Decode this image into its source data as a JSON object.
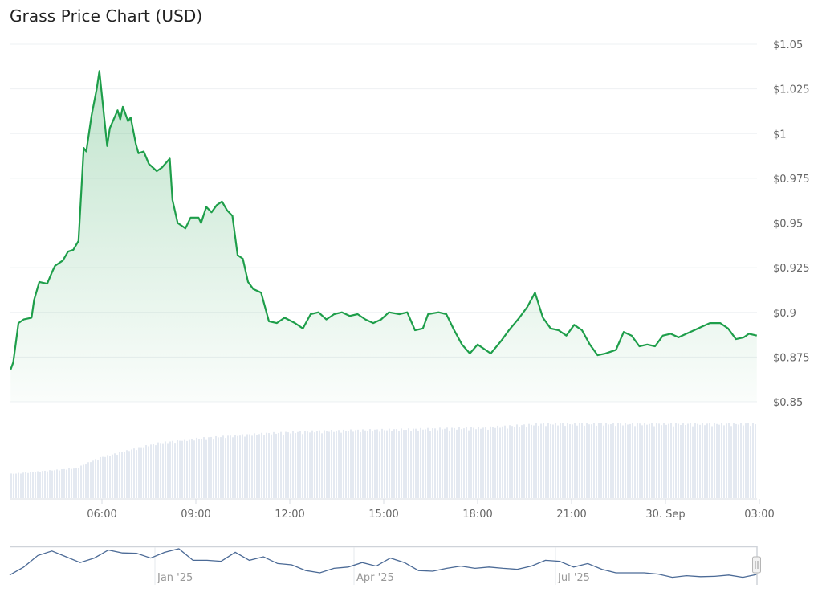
{
  "chart_data": {
    "type": "area",
    "title": "Grass Price Chart (USD)",
    "currency_prefix": "$",
    "y_ticks": [
      "$1.05",
      "$1.025",
      "$1",
      "$0.975",
      "$0.95",
      "$0.925",
      "$0.9",
      "$0.875",
      "$0.85"
    ],
    "y_tick_values": [
      1.05,
      1.025,
      1.0,
      0.975,
      0.95,
      0.925,
      0.9,
      0.875,
      0.85
    ],
    "ylim": [
      0.85,
      1.05
    ],
    "x_ticks": [
      "06:00",
      "09:00",
      "12:00",
      "15:00",
      "18:00",
      "21:00",
      "30. Sep",
      "03:00"
    ],
    "x_tick_values": [
      "2025-09-29T06:00",
      "2025-09-29T09:00",
      "2025-09-29T12:00",
      "2025-09-29T15:00",
      "2025-09-29T18:00",
      "2025-09-29T21:00",
      "2025-09-30T00:00",
      "2025-09-30T03:00"
    ],
    "grid": true,
    "line_color": "#1e9e4a",
    "series": [
      {
        "points": [
          [
            "2025-09-29T03:05",
            0.868
          ],
          [
            "2025-09-29T03:10",
            0.872
          ],
          [
            "2025-09-29T03:20",
            0.894
          ],
          [
            "2025-09-29T03:30",
            0.896
          ],
          [
            "2025-09-29T03:45",
            0.897
          ],
          [
            "2025-09-29T03:50",
            0.907
          ],
          [
            "2025-09-29T04:00",
            0.917
          ],
          [
            "2025-09-29T04:15",
            0.916
          ],
          [
            "2025-09-29T04:25",
            0.923
          ],
          [
            "2025-09-29T04:30",
            0.926
          ],
          [
            "2025-09-29T04:45",
            0.929
          ],
          [
            "2025-09-29T04:55",
            0.934
          ],
          [
            "2025-09-29T05:05",
            0.935
          ],
          [
            "2025-09-29T05:15",
            0.94
          ],
          [
            "2025-09-29T05:25",
            0.992
          ],
          [
            "2025-09-29T05:30",
            0.99
          ],
          [
            "2025-09-29T05:40",
            1.01
          ],
          [
            "2025-09-29T05:50",
            1.025
          ],
          [
            "2025-09-29T05:55",
            1.035
          ],
          [
            "2025-09-29T06:10",
            0.993
          ],
          [
            "2025-09-29T06:15",
            1.003
          ],
          [
            "2025-09-29T06:30",
            1.013
          ],
          [
            "2025-09-29T06:35",
            1.008
          ],
          [
            "2025-09-29T06:40",
            1.015
          ],
          [
            "2025-09-29T06:50",
            1.007
          ],
          [
            "2025-09-29T06:55",
            1.009
          ],
          [
            "2025-09-29T07:05",
            0.994
          ],
          [
            "2025-09-29T07:10",
            0.989
          ],
          [
            "2025-09-29T07:20",
            0.99
          ],
          [
            "2025-09-29T07:30",
            0.983
          ],
          [
            "2025-09-29T07:45",
            0.979
          ],
          [
            "2025-09-29T07:55",
            0.981
          ],
          [
            "2025-09-29T08:10",
            0.986
          ],
          [
            "2025-09-29T08:15",
            0.963
          ],
          [
            "2025-09-29T08:25",
            0.95
          ],
          [
            "2025-09-29T08:40",
            0.947
          ],
          [
            "2025-09-29T08:50",
            0.953
          ],
          [
            "2025-09-29T09:05",
            0.953
          ],
          [
            "2025-09-29T09:10",
            0.95
          ],
          [
            "2025-09-29T09:20",
            0.959
          ],
          [
            "2025-09-29T09:30",
            0.956
          ],
          [
            "2025-09-29T09:40",
            0.96
          ],
          [
            "2025-09-29T09:50",
            0.962
          ],
          [
            "2025-09-29T10:00",
            0.957
          ],
          [
            "2025-09-29T10:10",
            0.954
          ],
          [
            "2025-09-29T10:20",
            0.932
          ],
          [
            "2025-09-29T10:30",
            0.93
          ],
          [
            "2025-09-29T10:40",
            0.917
          ],
          [
            "2025-09-29T10:50",
            0.913
          ],
          [
            "2025-09-29T11:05",
            0.911
          ],
          [
            "2025-09-29T11:20",
            0.895
          ],
          [
            "2025-09-29T11:35",
            0.894
          ],
          [
            "2025-09-29T11:50",
            0.897
          ],
          [
            "2025-09-29T12:10",
            0.894
          ],
          [
            "2025-09-29T12:25",
            0.891
          ],
          [
            "2025-09-29T12:40",
            0.899
          ],
          [
            "2025-09-29T12:55",
            0.9
          ],
          [
            "2025-09-29T13:10",
            0.896
          ],
          [
            "2025-09-29T13:25",
            0.899
          ],
          [
            "2025-09-29T13:40",
            0.9
          ],
          [
            "2025-09-29T13:55",
            0.898
          ],
          [
            "2025-09-29T14:10",
            0.899
          ],
          [
            "2025-09-29T14:25",
            0.896
          ],
          [
            "2025-09-29T14:40",
            0.894
          ],
          [
            "2025-09-29T14:55",
            0.896
          ],
          [
            "2025-09-29T15:10",
            0.9
          ],
          [
            "2025-09-29T15:30",
            0.899
          ],
          [
            "2025-09-29T15:45",
            0.9
          ],
          [
            "2025-09-29T16:00",
            0.89
          ],
          [
            "2025-09-29T16:15",
            0.891
          ],
          [
            "2025-09-29T16:25",
            0.899
          ],
          [
            "2025-09-29T16:45",
            0.9
          ],
          [
            "2025-09-29T17:00",
            0.899
          ],
          [
            "2025-09-29T17:15",
            0.89
          ],
          [
            "2025-09-29T17:30",
            0.882
          ],
          [
            "2025-09-29T17:45",
            0.877
          ],
          [
            "2025-09-29T18:00",
            0.882
          ],
          [
            "2025-09-29T18:25",
            0.877
          ],
          [
            "2025-09-29T18:45",
            0.884
          ],
          [
            "2025-09-29T19:00",
            0.89
          ],
          [
            "2025-09-29T19:20",
            0.897
          ],
          [
            "2025-09-29T19:35",
            0.903
          ],
          [
            "2025-09-29T19:50",
            0.911
          ],
          [
            "2025-09-29T20:05",
            0.897
          ],
          [
            "2025-09-29T20:20",
            0.891
          ],
          [
            "2025-09-29T20:35",
            0.89
          ],
          [
            "2025-09-29T20:50",
            0.887
          ],
          [
            "2025-09-29T21:05",
            0.893
          ],
          [
            "2025-09-29T21:20",
            0.89
          ],
          [
            "2025-09-29T21:35",
            0.882
          ],
          [
            "2025-09-29T21:50",
            0.876
          ],
          [
            "2025-09-29T22:05",
            0.877
          ],
          [
            "2025-09-29T22:25",
            0.879
          ],
          [
            "2025-09-29T22:40",
            0.889
          ],
          [
            "2025-09-29T22:55",
            0.887
          ],
          [
            "2025-09-29T23:10",
            0.881
          ],
          [
            "2025-09-29T23:25",
            0.882
          ],
          [
            "2025-09-29T23:40",
            0.881
          ],
          [
            "2025-09-29T23:55",
            0.887
          ],
          [
            "2025-09-30T00:10",
            0.888
          ],
          [
            "2025-09-30T00:25",
            0.886
          ],
          [
            "2025-09-30T00:40",
            0.888
          ],
          [
            "2025-09-30T00:55",
            0.89
          ],
          [
            "2025-09-30T01:10",
            0.892
          ],
          [
            "2025-09-30T01:25",
            0.894
          ],
          [
            "2025-09-30T01:45",
            0.894
          ],
          [
            "2025-09-30T02:00",
            0.891
          ],
          [
            "2025-09-30T02:15",
            0.885
          ],
          [
            "2025-09-30T02:30",
            0.886
          ],
          [
            "2025-09-30T02:40",
            0.888
          ],
          [
            "2025-09-30T02:55",
            0.887
          ]
        ]
      }
    ],
    "volume": {
      "color": "#e4e9f1",
      "points": [
        [
          "2025-09-29T03:05",
          30
        ],
        [
          "2025-09-29T05:10",
          37
        ],
        [
          "2025-09-29T05:55",
          50
        ],
        [
          "2025-09-29T07:45",
          68
        ],
        [
          "2025-09-29T09:05",
          74
        ],
        [
          "2025-09-29T11:10",
          80
        ],
        [
          "2025-09-29T12:55",
          83
        ],
        [
          "2025-09-29T15:30",
          85
        ],
        [
          "2025-09-29T18:05",
          87
        ],
        [
          "2025-09-29T20:10",
          92
        ],
        [
          "2025-09-29T22:15",
          92
        ],
        [
          "2025-09-30T02:55",
          92
        ]
      ]
    },
    "navigator": {
      "line_color": "#4b6a96",
      "labels": [
        "Jan '25",
        "Apr '25",
        "Jul '25"
      ],
      "values": [
        18,
        43,
        79,
        93,
        75,
        57,
        71,
        96,
        87,
        86,
        71,
        89,
        100,
        64,
        64,
        61,
        89,
        64,
        75,
        54,
        50,
        32,
        25,
        39,
        43,
        57,
        46,
        71,
        57,
        32,
        30,
        39,
        46,
        39,
        43,
        39,
        36,
        46,
        64,
        61,
        43,
        54,
        36,
        25,
        25,
        25,
        21,
        11,
        16,
        13,
        14,
        18,
        11,
        20
      ]
    }
  }
}
